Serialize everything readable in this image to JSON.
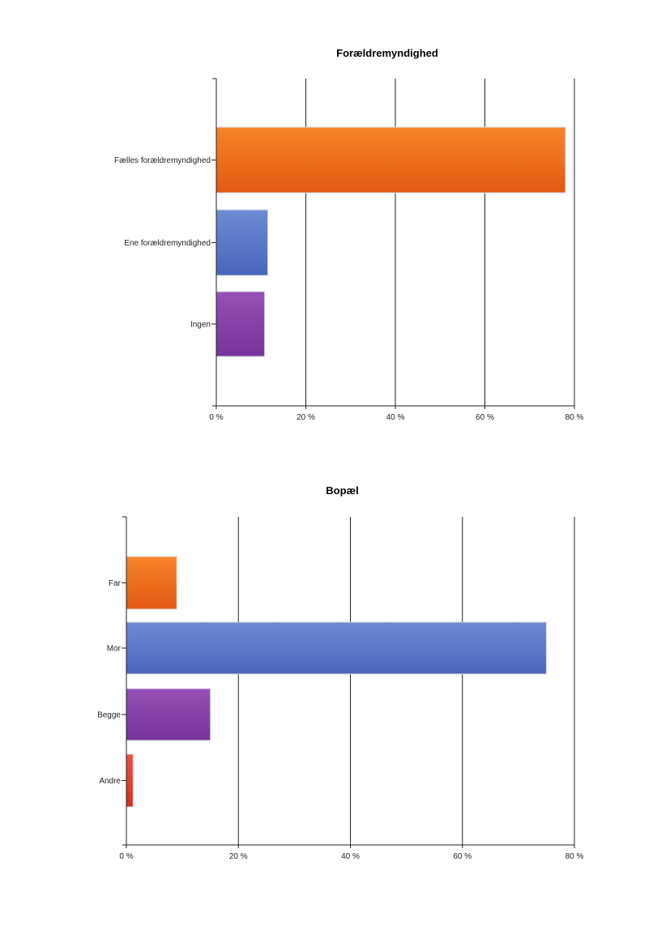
{
  "chart_data": [
    {
      "type": "bar",
      "orientation": "horizontal",
      "title": "Forældremyndighed",
      "categories": [
        "Fælles forældremyndighed",
        "Ene forældremyndighed",
        "Ingen"
      ],
      "values": [
        78,
        11.5,
        10.8
      ],
      "colors": [
        "#ee6f1c",
        "#5577c4",
        "#8743a8"
      ],
      "xticks": [
        "0 %",
        "20 %",
        "40 %",
        "60 %",
        "80 %"
      ],
      "xlim": [
        0,
        80
      ],
      "grid": true
    },
    {
      "type": "bar",
      "orientation": "horizontal",
      "title": "Bopæl",
      "categories": [
        "Far",
        "Mor",
        "Begge",
        "Andre"
      ],
      "values": [
        9,
        75,
        15,
        1.2
      ],
      "colors": [
        "#ee6f1c",
        "#5577c4",
        "#8743a8",
        "#e03c2c"
      ],
      "xticks": [
        "0 %",
        "20 %",
        "40 %",
        "60 %",
        "80 %"
      ],
      "xlim": [
        0,
        80
      ],
      "grid": true
    }
  ]
}
